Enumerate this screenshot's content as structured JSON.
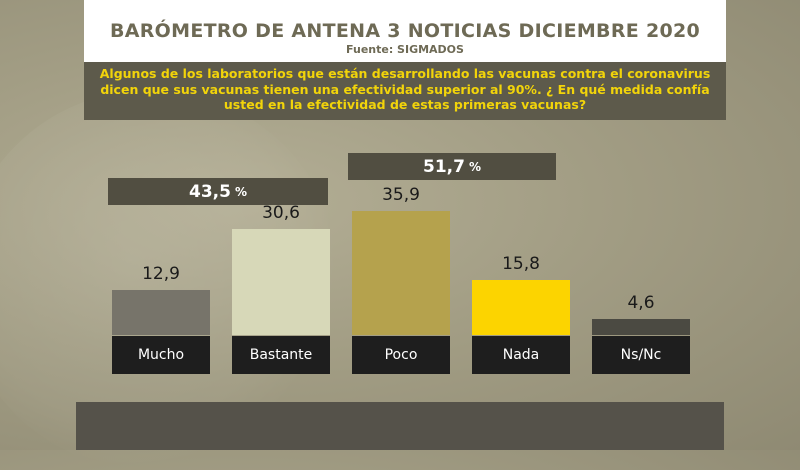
{
  "header": {
    "title": "BARÓMETRO DE ANTENA 3 NOTICIAS DICIEMBRE 2020",
    "source": "Fuente: SIGMADOS"
  },
  "question": {
    "line1": "Algunos de los laboratorios que están desarrollando las vacunas contra el coronavirus",
    "line2": "dicen que sus vacunas tienen una efectividad superior al 90%. ¿ En qué medida confía",
    "line3": "usted en la efectividad de estas primeras vacunas?"
  },
  "groups": {
    "positive": {
      "value": "43,5",
      "unit": "%"
    },
    "negative": {
      "value": "51,7",
      "unit": "%"
    }
  },
  "chart_data": {
    "type": "bar",
    "title": "BARÓMETRO DE ANTENA 3 NOTICIAS DICIEMBRE 2020",
    "categories": [
      "Mucho",
      "Bastante",
      "Poco",
      "Nada",
      "Ns/Nc"
    ],
    "values": [
      12.9,
      30.6,
      35.9,
      15.8,
      4.6
    ],
    "value_labels": [
      "12,9",
      "30,6",
      "35,9",
      "15,8",
      "4,6"
    ],
    "colors": [
      "#77746a",
      "#d7d8b8",
      "#b5a24d",
      "#fcd400",
      "#4b4a42"
    ],
    "groupings": [
      {
        "label": "43,5 %",
        "categories": [
          "Mucho",
          "Bastante"
        ]
      },
      {
        "label": "51,7 %",
        "categories": [
          "Poco",
          "Nada"
        ]
      }
    ],
    "xlabel": "",
    "ylabel": "",
    "ylim": [
      0,
      40
    ]
  }
}
